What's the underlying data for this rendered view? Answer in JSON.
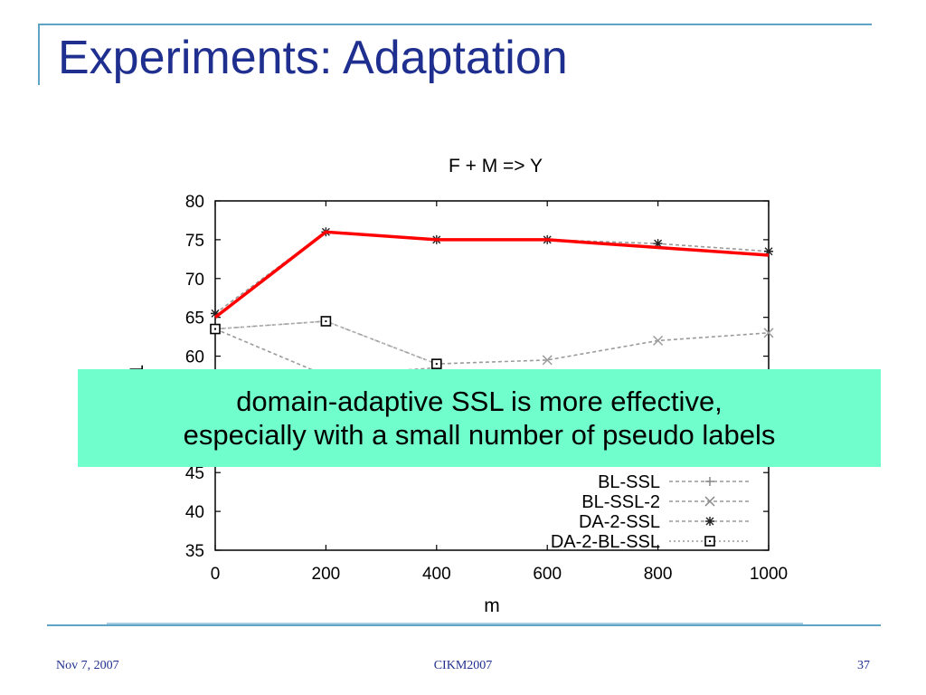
{
  "slide": {
    "title": "Experiments: Adaptation",
    "callout": {
      "line1": "domain-adaptive SSL is more effective,",
      "line2": "especially with a small number of pseudo labels"
    },
    "footer": {
      "date": "Nov 7, 2007",
      "venue": "CIKM2007",
      "page": "37"
    }
  },
  "colors": {
    "title": "#1f2f8f",
    "accent_line": "#5fa3c5",
    "callout_bg": "#6ffecc",
    "highlight_series": "#ff0000"
  },
  "chart_data": {
    "type": "line",
    "title": "F + M => Y",
    "xlabel": "m",
    "ylabel": "F1",
    "x": [
      0,
      200,
      400,
      600,
      800,
      1000
    ],
    "xticks": [
      "0",
      "200",
      "400",
      "600",
      "800",
      "1000"
    ],
    "yticks": [
      "35",
      "40",
      "45",
      "60",
      "65",
      "70",
      "75",
      "80"
    ],
    "xlim": [
      0,
      1000
    ],
    "ylim": [
      35,
      80
    ],
    "legend_position": "bottom-right",
    "legend_entries": [
      "BL-SSL",
      "BL-SSL-2",
      "DA-2-SSL",
      "DA-2-BL-SSL"
    ],
    "series": [
      {
        "name": "BL-SSL",
        "values": [
          63.5,
          57.5,
          58.5,
          null,
          null,
          null
        ],
        "color": "#9a9a9a",
        "marker": "plus"
      },
      {
        "name": "BL-SSL-2",
        "values": [
          63.5,
          64.5,
          59,
          59.5,
          62,
          63
        ],
        "color": "#9a9a9a",
        "marker": "x"
      },
      {
        "name": "DA-2-SSL",
        "values": [
          65.5,
          76,
          75,
          75,
          74.5,
          73.5
        ],
        "color": "#9a9a9a",
        "marker": "star"
      },
      {
        "name": "DA-2-BL-SSL",
        "values": [
          63.5,
          64.5,
          59,
          null,
          null,
          null
        ],
        "color": "#bbbbbb",
        "marker": "square"
      }
    ],
    "highlight_line": {
      "values": [
        65,
        76,
        75,
        75,
        74,
        73
      ],
      "color": "#ff0000"
    }
  }
}
